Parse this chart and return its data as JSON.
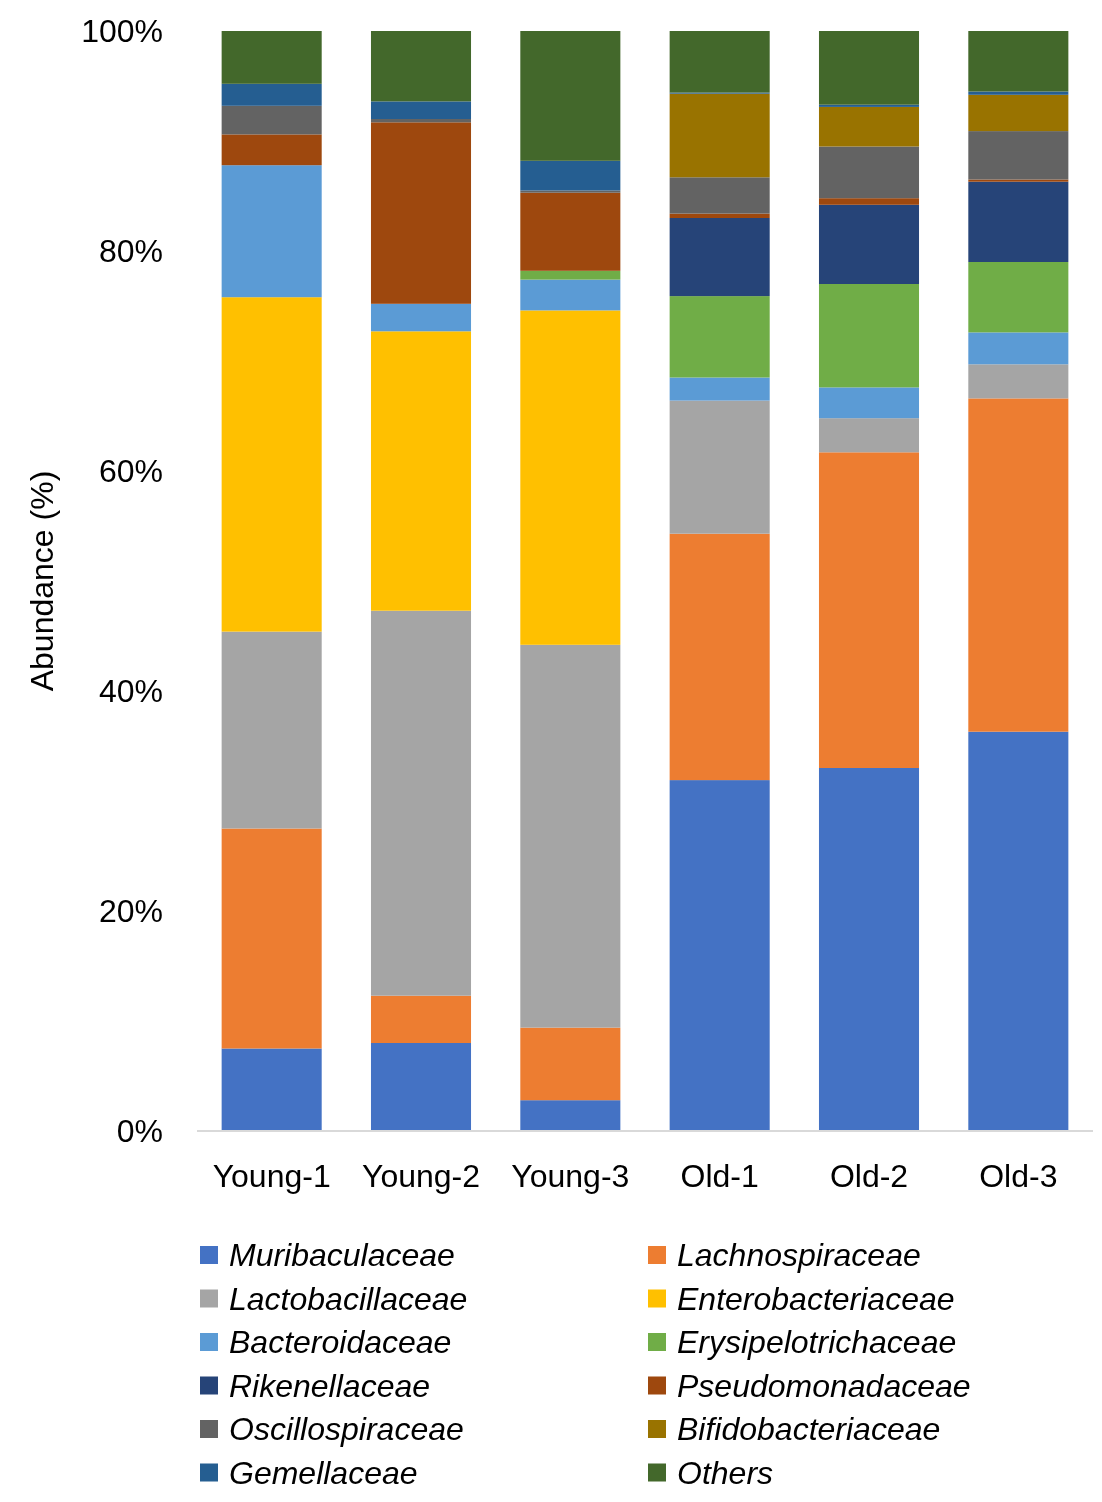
{
  "chart_data": {
    "type": "bar",
    "stacked": true,
    "ylabel": "Abundance (%)",
    "categories": [
      "Young-1",
      "Young-2",
      "Young-3",
      "Old-1",
      "Old-2",
      "Old-3"
    ],
    "ylim": [
      0,
      100
    ],
    "yticks": [
      {
        "value": 0,
        "label": "0%"
      },
      {
        "value": 20,
        "label": "20%"
      },
      {
        "value": 40,
        "label": "40%"
      },
      {
        "value": 60,
        "label": "60%"
      },
      {
        "value": 80,
        "label": "80%"
      },
      {
        "value": 100,
        "label": "100%"
      }
    ],
    "grid": false,
    "legend": "bottom",
    "series": [
      {
        "name": "Muribaculaceae",
        "color": "#4472c4",
        "values": [
          7.5,
          8.0,
          2.8,
          31.9,
          33.0,
          36.3
        ]
      },
      {
        "name": "Lachnospiraceae",
        "color": "#ed7d31",
        "values": [
          20.0,
          4.3,
          6.6,
          22.4,
          28.7,
          30.3
        ]
      },
      {
        "name": "Lactobacillaceae",
        "color": "#a5a5a5",
        "values": [
          17.9,
          35.0,
          34.8,
          12.1,
          3.1,
          3.1
        ]
      },
      {
        "name": "Enterobacteriaceae",
        "color": "#ffc000",
        "values": [
          30.4,
          25.4,
          30.4,
          0,
          0,
          0
        ]
      },
      {
        "name": "Bacteroidaceae",
        "color": "#5b9bd5",
        "values": [
          12.0,
          2.5,
          2.8,
          2.1,
          2.8,
          2.9
        ]
      },
      {
        "name": "Erysipelotrichaceae",
        "color": "#70ad47",
        "values": [
          0,
          0,
          0.8,
          7.4,
          9.4,
          6.4
        ]
      },
      {
        "name": "Rikenellaceae",
        "color": "#264478",
        "values": [
          0,
          0,
          0,
          7.1,
          7.2,
          7.3
        ]
      },
      {
        "name": "Pseudomonadaceae",
        "color": "#9e480e",
        "values": [
          2.8,
          16.5,
          7.1,
          0.4,
          0.6,
          0.2
        ]
      },
      {
        "name": "Oscillospiraceae",
        "color": "#636363",
        "values": [
          2.6,
          0.3,
          0.2,
          3.3,
          4.7,
          4.4
        ]
      },
      {
        "name": "Bifidobacteriaceae",
        "color": "#997300",
        "values": [
          0,
          0,
          0,
          7.6,
          3.6,
          3.3
        ]
      },
      {
        "name": "Gemellaceae",
        "color": "#255e91",
        "values": [
          2.0,
          1.6,
          2.7,
          0.1,
          0.2,
          0.3
        ]
      },
      {
        "name": "Others",
        "color": "#43682b",
        "values": [
          4.8,
          6.4,
          11.8,
          5.6,
          6.7,
          5.5
        ]
      }
    ]
  }
}
